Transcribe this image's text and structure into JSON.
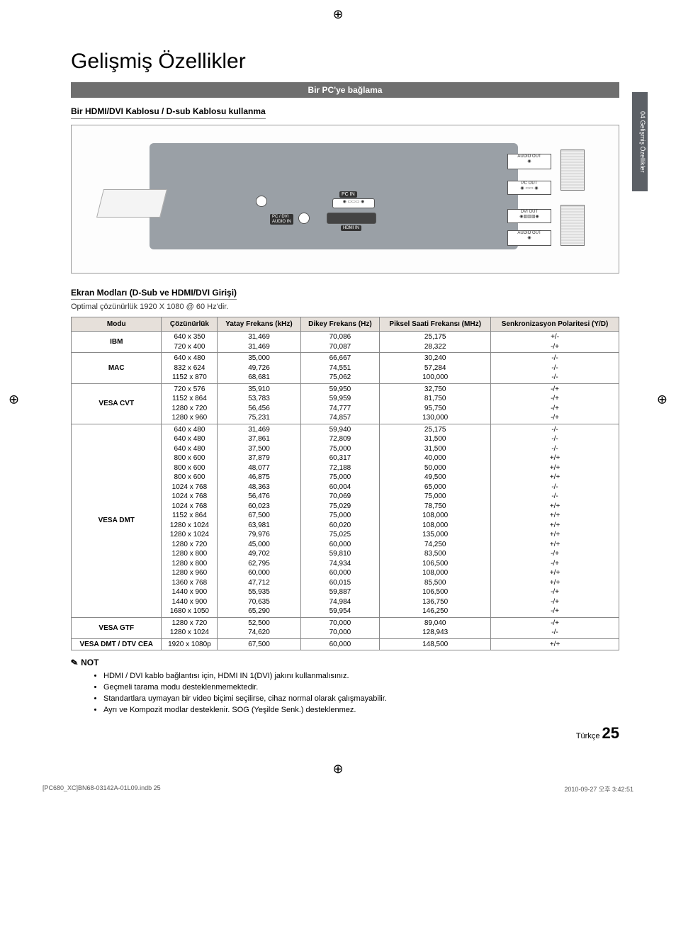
{
  "crop_glyph": "⊕",
  "side_tab": "04   Gelişmiş Özellikler",
  "title": "Gelişmiş Özellikler",
  "section_bar": "Bir PC'ye bağlama",
  "sub_hdmi": "Bir HDMI/DVI Kablosu / D-sub Kablosu kullanma",
  "diagram": {
    "audio_out": "AUDIO OUT",
    "pc_out": "PC OUT",
    "dvi_out": "DVI OUT",
    "pc_in": "PC IN",
    "hdmi_in": "HDMI IN",
    "pc_dvi_audio_in": "PC / DVI\nAUDIO IN"
  },
  "sub_modes": "Ekran Modları (D-Sub ve HDMI/DVI Girişi)",
  "opt_res": "Optimal çözünürlük 1920 X 1080 @ 60 Hz'dir.",
  "table": {
    "columns": [
      "Modu",
      "Çözünürlük",
      "Yatay Frekans (kHz)",
      "Dikey Frekans (Hz)",
      "Piksel Saati Frekansı (MHz)",
      "Senkronizasyon Polaritesi (Y/D)"
    ],
    "groups": [
      {
        "mode": "IBM",
        "rows": [
          [
            "640 x 350",
            "31,469",
            "70,086",
            "25,175",
            "+/-"
          ],
          [
            "720 x 400",
            "31,469",
            "70,087",
            "28,322",
            "-/+"
          ]
        ]
      },
      {
        "mode": "MAC",
        "rows": [
          [
            "640 x 480",
            "35,000",
            "66,667",
            "30,240",
            "-/-"
          ],
          [
            "832 x 624",
            "49,726",
            "74,551",
            "57,284",
            "-/-"
          ],
          [
            "1152 x 870",
            "68,681",
            "75,062",
            "100,000",
            "-/-"
          ]
        ]
      },
      {
        "mode": "VESA CVT",
        "rows": [
          [
            "720 x 576",
            "35,910",
            "59,950",
            "32,750",
            "-/+"
          ],
          [
            "1152 x 864",
            "53,783",
            "59,959",
            "81,750",
            "-/+"
          ],
          [
            "1280 x 720",
            "56,456",
            "74,777",
            "95,750",
            "-/+"
          ],
          [
            "1280 x 960",
            "75,231",
            "74,857",
            "130,000",
            "-/+"
          ]
        ]
      },
      {
        "mode": "VESA DMT",
        "rows": [
          [
            "640 x 480",
            "31,469",
            "59,940",
            "25,175",
            "-/-"
          ],
          [
            "640 x 480",
            "37,861",
            "72,809",
            "31,500",
            "-/-"
          ],
          [
            "640 x 480",
            "37,500",
            "75,000",
            "31,500",
            "-/-"
          ],
          [
            "800 x 600",
            "37,879",
            "60,317",
            "40,000",
            "+/+"
          ],
          [
            "800 x 600",
            "48,077",
            "72,188",
            "50,000",
            "+/+"
          ],
          [
            "800 x 600",
            "46,875",
            "75,000",
            "49,500",
            "+/+"
          ],
          [
            "1024 x 768",
            "48,363",
            "60,004",
            "65,000",
            "-/-"
          ],
          [
            "1024 x 768",
            "56,476",
            "70,069",
            "75,000",
            "-/-"
          ],
          [
            "1024 x 768",
            "60,023",
            "75,029",
            "78,750",
            "+/+"
          ],
          [
            "1152 x 864",
            "67,500",
            "75,000",
            "108,000",
            "+/+"
          ],
          [
            "1280 x 1024",
            "63,981",
            "60,020",
            "108,000",
            "+/+"
          ],
          [
            "1280 x 1024",
            "79,976",
            "75,025",
            "135,000",
            "+/+"
          ],
          [
            "1280 x 720",
            "45,000",
            "60,000",
            "74,250",
            "+/+"
          ],
          [
            "1280 x 800",
            "49,702",
            "59,810",
            "83,500",
            "-/+"
          ],
          [
            "1280 x 800",
            "62,795",
            "74,934",
            "106,500",
            "-/+"
          ],
          [
            "1280 x 960",
            "60,000",
            "60,000",
            "108,000",
            "+/+"
          ],
          [
            "1360 x 768",
            "47,712",
            "60,015",
            "85,500",
            "+/+"
          ],
          [
            "1440 x 900",
            "55,935",
            "59,887",
            "106,500",
            "-/+"
          ],
          [
            "1440 x 900",
            "70,635",
            "74,984",
            "136,750",
            "-/+"
          ],
          [
            "1680 x 1050",
            "65,290",
            "59,954",
            "146,250",
            "-/+"
          ]
        ]
      },
      {
        "mode": "VESA GTF",
        "rows": [
          [
            "1280 x 720",
            "52,500",
            "70,000",
            "89,040",
            "-/+"
          ],
          [
            "1280 x 1024",
            "74,620",
            "70,000",
            "128,943",
            "-/-"
          ]
        ]
      },
      {
        "mode": "VESA DMT / DTV CEA",
        "rows": [
          [
            "1920 x 1080p",
            "67,500",
            "60,000",
            "148,500",
            "+/+"
          ]
        ]
      }
    ]
  },
  "not": {
    "title": "NOT",
    "items": [
      "HDMI / DVI kablo bağlantısı için, HDMI IN 1(DVI) jakını kullanmalısınız.",
      "Geçmeli tarama modu desteklenmemektedir.",
      "Standartlara uymayan bir video biçimi seçilirse, cihaz normal olarak çalışmayabilir.",
      "Ayrı ve Kompozit modlar desteklenir. SOG (Yeşilde Senk.) desteklenmez."
    ]
  },
  "footer": {
    "lang": "Türkçe",
    "page": "25"
  },
  "bottom": {
    "left": "[PC680_XC]BN68-03142A-01L09.indb   25",
    "right": "2010-09-27   오후 3:42:51"
  }
}
